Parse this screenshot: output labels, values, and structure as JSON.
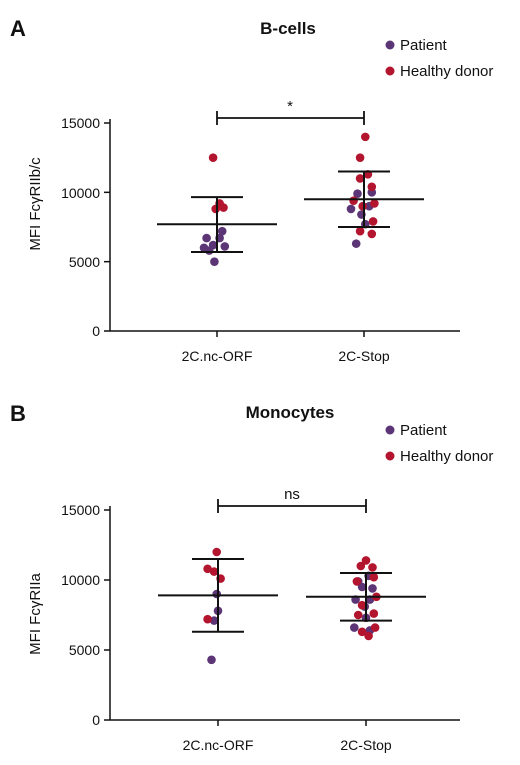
{
  "colors": {
    "patient": "#5b3575",
    "healthy_donor": "#b3152f",
    "axis": "#111111"
  },
  "legend": {
    "patient": "Patient",
    "healthy_donor": "Healthy donor"
  },
  "chart_data": [
    {
      "type": "scatter",
      "panel_letter": "A",
      "title": "B-cells",
      "xlabel": "",
      "ylabel": "MFI FcγRIIb/c",
      "categories": [
        "2C.nc-ORF",
        "2C-Stop"
      ],
      "ylim": [
        0,
        15000
      ],
      "yticks": [
        0,
        5000,
        10000,
        15000
      ],
      "ytick_labels": [
        "0",
        "5000",
        "10000",
        "15000"
      ],
      "legend_position": "top-right",
      "significance": {
        "from": "2C.nc-ORF",
        "to": "2C-Stop",
        "label": "*"
      },
      "summary": [
        {
          "category": "2C.nc-ORF",
          "mean": 7700,
          "sd_low": 5700,
          "sd_high": 9650
        },
        {
          "category": "2C-Stop",
          "mean": 9500,
          "sd_low": 7500,
          "sd_high": 11500
        }
      ],
      "series": [
        {
          "name": "Patient",
          "points": [
            {
              "x": "2C.nc-ORF",
              "offset": -0.8,
              "y": 6700
            },
            {
              "x": "2C.nc-ORF",
              "offset": 0.2,
              "y": 6700
            },
            {
              "x": "2C.nc-ORF",
              "offset": -0.3,
              "y": 6200
            },
            {
              "x": "2C.nc-ORF",
              "offset": 0.6,
              "y": 6100
            },
            {
              "x": "2C.nc-ORF",
              "offset": -1.0,
              "y": 6000
            },
            {
              "x": "2C.nc-ORF",
              "offset": 0.4,
              "y": 7200
            },
            {
              "x": "2C.nc-ORF",
              "offset": -0.6,
              "y": 5800
            },
            {
              "x": "2C.nc-ORF",
              "offset": -0.2,
              "y": 5000
            },
            {
              "x": "2C-Stop",
              "offset": 0.6,
              "y": 10000
            },
            {
              "x": "2C-Stop",
              "offset": -0.5,
              "y": 9900
            },
            {
              "x": "2C-Stop",
              "offset": 0.4,
              "y": 9000
            },
            {
              "x": "2C-Stop",
              "offset": -1.0,
              "y": 8800
            },
            {
              "x": "2C-Stop",
              "offset": -0.2,
              "y": 8400
            },
            {
              "x": "2C-Stop",
              "offset": 0.1,
              "y": 7700
            },
            {
              "x": "2C-Stop",
              "offset": -0.6,
              "y": 6300
            }
          ]
        },
        {
          "name": "Healthy donor",
          "points": [
            {
              "x": "2C.nc-ORF",
              "offset": -0.3,
              "y": 12500
            },
            {
              "x": "2C.nc-ORF",
              "offset": 0.2,
              "y": 9200
            },
            {
              "x": "2C.nc-ORF",
              "offset": -0.1,
              "y": 8800
            },
            {
              "x": "2C.nc-ORF",
              "offset": 0.5,
              "y": 8900
            },
            {
              "x": "2C-Stop",
              "offset": 0.1,
              "y": 14000
            },
            {
              "x": "2C-Stop",
              "offset": -0.3,
              "y": 12500
            },
            {
              "x": "2C-Stop",
              "offset": 0.3,
              "y": 11300
            },
            {
              "x": "2C-Stop",
              "offset": -0.3,
              "y": 11000
            },
            {
              "x": "2C-Stop",
              "offset": 0.6,
              "y": 10400
            },
            {
              "x": "2C-Stop",
              "offset": -0.8,
              "y": 9400
            },
            {
              "x": "2C-Stop",
              "offset": 0.8,
              "y": 9200
            },
            {
              "x": "2C-Stop",
              "offset": -0.1,
              "y": 9000
            },
            {
              "x": "2C-Stop",
              "offset": 0.7,
              "y": 7900
            },
            {
              "x": "2C-Stop",
              "offset": 0.6,
              "y": 7000
            },
            {
              "x": "2C-Stop",
              "offset": -0.3,
              "y": 7200
            }
          ]
        }
      ]
    },
    {
      "type": "scatter",
      "panel_letter": "B",
      "title": "Monocytes",
      "xlabel": "",
      "ylabel": "MFI FcγRIIa",
      "categories": [
        "2C.nc-ORF",
        "2C-Stop"
      ],
      "ylim": [
        0,
        15000
      ],
      "yticks": [
        0,
        5000,
        10000,
        15000
      ],
      "ytick_labels": [
        "0",
        "5000",
        "10000",
        "15000"
      ],
      "legend_position": "top-right",
      "significance": {
        "from": "2C.nc-ORF",
        "to": "2C-Stop",
        "label": "ns"
      },
      "summary": [
        {
          "category": "2C.nc-ORF",
          "mean": 8900,
          "sd_low": 6300,
          "sd_high": 11500
        },
        {
          "category": "2C-Stop",
          "mean": 8800,
          "sd_low": 7100,
          "sd_high": 10500
        }
      ],
      "series": [
        {
          "name": "Patient",
          "points": [
            {
              "x": "2C.nc-ORF",
              "offset": -0.1,
              "y": 9000
            },
            {
              "x": "2C.nc-ORF",
              "offset": 0.0,
              "y": 7800
            },
            {
              "x": "2C.nc-ORF",
              "offset": -0.3,
              "y": 7100
            },
            {
              "x": "2C.nc-ORF",
              "offset": -0.5,
              "y": 4300
            },
            {
              "x": "2C-Stop",
              "offset": 0.2,
              "y": 10300
            },
            {
              "x": "2C-Stop",
              "offset": -0.6,
              "y": 9900
            },
            {
              "x": "2C-Stop",
              "offset": 0.5,
              "y": 9400
            },
            {
              "x": "2C-Stop",
              "offset": -0.3,
              "y": 9500
            },
            {
              "x": "2C-Stop",
              "offset": -0.8,
              "y": 8600
            },
            {
              "x": "2C-Stop",
              "offset": 0.3,
              "y": 8600
            },
            {
              "x": "2C-Stop",
              "offset": -0.1,
              "y": 8100
            },
            {
              "x": "2C-Stop",
              "offset": 0.0,
              "y": 7300
            },
            {
              "x": "2C-Stop",
              "offset": -0.9,
              "y": 6600
            },
            {
              "x": "2C-Stop",
              "offset": 0.3,
              "y": 6400
            }
          ]
        },
        {
          "name": "Healthy donor",
          "points": [
            {
              "x": "2C.nc-ORF",
              "offset": -0.1,
              "y": 12000
            },
            {
              "x": "2C.nc-ORF",
              "offset": -0.8,
              "y": 10800
            },
            {
              "x": "2C.nc-ORF",
              "offset": -0.3,
              "y": 10600
            },
            {
              "x": "2C.nc-ORF",
              "offset": 0.2,
              "y": 10100
            },
            {
              "x": "2C.nc-ORF",
              "offset": -0.8,
              "y": 7200
            },
            {
              "x": "2C-Stop",
              "offset": 0.0,
              "y": 11400
            },
            {
              "x": "2C-Stop",
              "offset": -0.4,
              "y": 11000
            },
            {
              "x": "2C-Stop",
              "offset": 0.5,
              "y": 10900
            },
            {
              "x": "2C-Stop",
              "offset": 0.6,
              "y": 10200
            },
            {
              "x": "2C-Stop",
              "offset": -0.7,
              "y": 9900
            },
            {
              "x": "2C-Stop",
              "offset": 0.8,
              "y": 8800
            },
            {
              "x": "2C-Stop",
              "offset": -0.3,
              "y": 8200
            },
            {
              "x": "2C-Stop",
              "offset": 0.6,
              "y": 7600
            },
            {
              "x": "2C-Stop",
              "offset": -0.6,
              "y": 7500
            },
            {
              "x": "2C-Stop",
              "offset": 0.2,
              "y": 6000
            },
            {
              "x": "2C-Stop",
              "offset": -0.3,
              "y": 6300
            },
            {
              "x": "2C-Stop",
              "offset": 0.7,
              "y": 6600
            }
          ]
        }
      ]
    }
  ]
}
